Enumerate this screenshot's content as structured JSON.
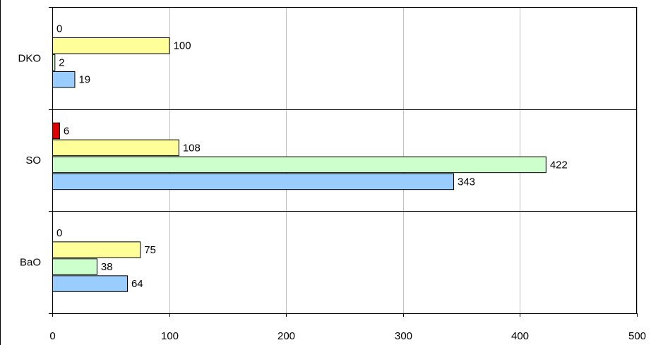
{
  "chart_data": {
    "type": "bar",
    "orientation": "horizontal",
    "categories": [
      "DKO",
      "SO",
      "BaO"
    ],
    "series": [
      {
        "key": "red",
        "color": "#e00000",
        "values": [
          0,
          6,
          0
        ]
      },
      {
        "key": "yellow",
        "color": "#ffff99",
        "values": [
          100,
          108,
          75
        ]
      },
      {
        "key": "green",
        "color": "#ccffcc",
        "values": [
          2,
          422,
          38
        ]
      },
      {
        "key": "blue",
        "color": "#99ccff",
        "values": [
          19,
          343,
          64
        ]
      }
    ],
    "xlim": [
      0,
      500
    ],
    "xticks": [
      "0",
      "100",
      "200",
      "300",
      "400",
      "500"
    ],
    "grid": "vertical",
    "legend": "none",
    "title": "",
    "xlabel": "",
    "ylabel": ""
  }
}
